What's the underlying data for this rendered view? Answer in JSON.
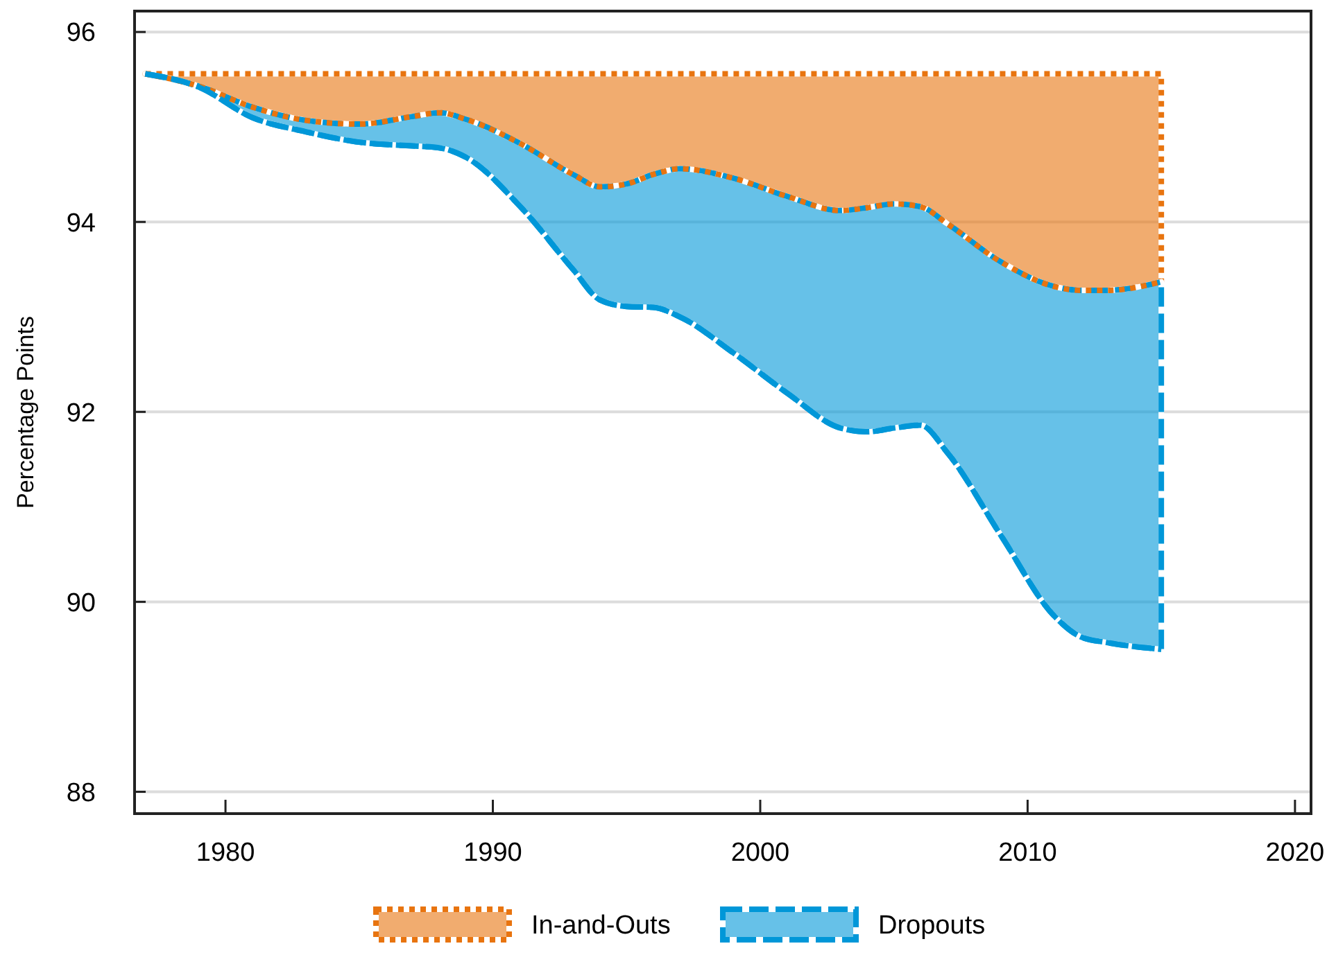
{
  "chart_data": {
    "type": "line",
    "ylabel": "Percentage Points",
    "x": [
      1977,
      1979,
      1981,
      1983,
      1985,
      1987,
      1988,
      1989,
      1991,
      1993,
      1994,
      1995,
      1996,
      1997,
      1999,
      2001,
      2003,
      2004,
      2005,
      2006,
      2007,
      2009,
      2011,
      2012,
      2013,
      2015
    ],
    "series": [
      {
        "name": "In-and-Outs",
        "color": "#e8740f",
        "line_style": "dotted",
        "values": [
          95.56,
          95.43,
          95.21,
          95.07,
          95.03,
          95.11,
          95.15,
          95.08,
          94.83,
          94.5,
          94.37,
          94.4,
          94.5,
          94.56,
          94.46,
          94.27,
          94.12,
          94.15,
          94.19,
          94.16,
          93.98,
          93.58,
          93.32,
          93.28,
          93.28,
          93.37
        ],
        "lower": [
          95.56,
          95.43,
          95.21,
          95.07,
          95.03,
          95.11,
          95.15,
          95.08,
          94.83,
          94.5,
          94.37,
          94.4,
          94.5,
          94.56,
          94.46,
          94.27,
          94.12,
          94.15,
          94.19,
          94.16,
          93.98,
          93.58,
          93.32,
          93.28,
          93.28,
          93.37
        ],
        "upper": [
          95.56,
          95.56,
          95.56,
          95.56,
          95.56,
          95.56,
          95.56,
          95.56,
          95.56,
          95.56,
          95.56,
          95.56,
          95.56,
          95.56,
          95.56,
          95.56,
          95.56,
          95.56,
          95.56,
          95.56,
          95.56,
          95.56,
          95.56,
          95.56,
          95.56,
          95.56
        ]
      },
      {
        "name": "Dropouts",
        "color": "#0097d8",
        "line_style": "dashed",
        "values": [
          95.56,
          95.42,
          95.1,
          94.95,
          94.84,
          94.8,
          94.78,
          94.68,
          94.17,
          93.5,
          93.18,
          93.11,
          93.1,
          93.0,
          92.62,
          92.2,
          91.83,
          91.79,
          91.83,
          91.86,
          91.57,
          90.7,
          89.85,
          89.63,
          89.57,
          89.5
        ],
        "lower": [
          95.56,
          95.42,
          95.1,
          94.95,
          94.84,
          94.8,
          94.78,
          94.68,
          94.17,
          93.5,
          93.18,
          93.11,
          93.1,
          93.0,
          92.62,
          92.2,
          91.83,
          91.79,
          91.83,
          91.86,
          91.57,
          90.7,
          89.85,
          89.63,
          89.57,
          89.5
        ],
        "upper": [
          95.56,
          95.43,
          95.21,
          95.07,
          95.03,
          95.11,
          95.15,
          95.08,
          94.83,
          94.5,
          94.37,
          94.4,
          94.5,
          94.56,
          94.46,
          94.27,
          94.12,
          94.15,
          94.19,
          94.16,
          93.98,
          93.58,
          93.32,
          93.28,
          93.28,
          93.37
        ]
      }
    ],
    "xlim": [
      1976.6,
      2020.6
    ],
    "xticks": [
      1980,
      1990,
      2000,
      2010,
      2020
    ],
    "ylim": [
      87.77,
      96.22
    ],
    "yticks": [
      88,
      90,
      92,
      94,
      96
    ],
    "grid": "y",
    "legend": "bottom"
  }
}
